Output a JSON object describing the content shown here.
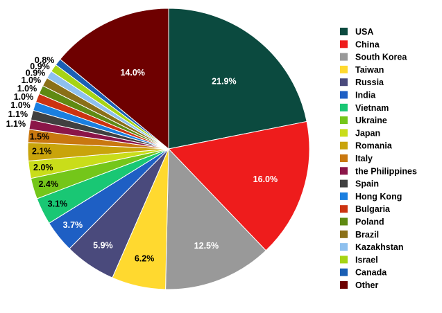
{
  "chart_data": {
    "type": "pie",
    "title": "",
    "categories": [
      "USA",
      "China",
      "South Korea",
      "Taiwan",
      "Russia",
      "India",
      "Vietnam",
      "Ukraine",
      "Japan",
      "Romania",
      "Italy",
      "the Philippines",
      "Spain",
      "Hong Kong",
      "Bulgaria",
      "Poland",
      "Brazil",
      "Kazakhstan",
      "Israel",
      "Canada",
      "Other"
    ],
    "values": [
      21.9,
      16.0,
      12.5,
      6.2,
      5.9,
      3.7,
      3.1,
      2.4,
      2.0,
      2.1,
      1.5,
      1.1,
      1.1,
      1.0,
      1.0,
      1.0,
      1.0,
      0.9,
      0.9,
      0.8,
      14.0
    ],
    "labels": [
      "21.9%",
      "16.0%",
      "12.5%",
      "6.2%",
      "5.9%",
      "3.7%",
      "3.1%",
      "2.4%",
      "2.0%",
      "2.1%",
      "1.5%",
      "1.1%",
      "1.1%",
      "1.0%",
      "1.0%",
      "1.0%",
      "1.0%",
      "0.9%",
      "0.9%",
      "0.8%",
      "14.0%"
    ],
    "colors": [
      "#0b4a3f",
      "#ee1c1c",
      "#999999",
      "#ffd92f",
      "#4a4a7c",
      "#1e5fc4",
      "#19c774",
      "#74c61a",
      "#c9dd1a",
      "#c9a40b",
      "#c97810",
      "#8b1548",
      "#404040",
      "#1a7fe0",
      "#cc3311",
      "#5f8a12",
      "#8a7018",
      "#8ec0ee",
      "#a6d414",
      "#1a5fb4",
      "#6e0000"
    ],
    "label_colors": [
      "#ffffff",
      "#ffffff",
      "#ffffff",
      "#000000",
      "#ffffff",
      "#ffffff",
      "#000000",
      "#000000",
      "#000000",
      "#000000",
      "#000000",
      "#000000",
      "#000000",
      "#000000",
      "#000000",
      "#000000",
      "#000000",
      "#000000",
      "#000000",
      "#000000",
      "#ffffff"
    ],
    "legend_position": "right"
  }
}
